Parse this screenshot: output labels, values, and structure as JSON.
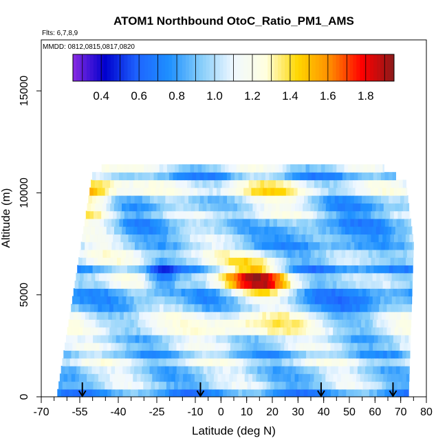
{
  "chart_data": {
    "type": "heatmap",
    "title": "ATOM1 Northbound OtoC_Ratio_PM1_AMS",
    "flights_text": "Flts: 6,7,8,9",
    "dates_text": "MMDD: 0812,0815,0817,0820",
    "xlabel": "Latitude (deg N)",
    "ylabel": "Altitude (m)",
    "xlim": [
      -70,
      80
    ],
    "ylim": [
      0,
      17500
    ],
    "x_ticks": [
      -70,
      -55,
      -40,
      -25,
      -10,
      0,
      10,
      20,
      30,
      40,
      50,
      60,
      70,
      80
    ],
    "y_ticks": [
      0,
      5000,
      10000,
      15000
    ],
    "colorbar": {
      "min": 0.25,
      "max": 1.95,
      "ticks": [
        0.4,
        0.6,
        0.8,
        1.0,
        1.2,
        1.4,
        1.6,
        1.8
      ],
      "tick_labels": [
        "0.4",
        "0.6",
        "0.8",
        "1.0",
        "1.2",
        "1.4",
        "1.6",
        "1.8"
      ],
      "colors": [
        "#8a2be2",
        "#0000cd",
        "#1e64ff",
        "#1e90ff",
        "#87cefa",
        "#f0f8ff",
        "#ffffe0",
        "#ffd700",
        "#ff8c00",
        "#ff0000",
        "#8b1a1a"
      ]
    },
    "flight_markers_lat": [
      -54,
      -8,
      39,
      67
    ],
    "profile_bounds": [
      [
        -64,
        0
      ],
      [
        -50,
        11000
      ],
      [
        -25,
        12500
      ],
      [
        -10,
        12900
      ],
      [
        20,
        12900
      ],
      [
        40,
        12200
      ],
      [
        60,
        11500
      ],
      [
        72,
        10500
      ],
      [
        75,
        7500
      ],
      [
        73,
        0
      ]
    ],
    "grid": false,
    "legend": "none"
  }
}
